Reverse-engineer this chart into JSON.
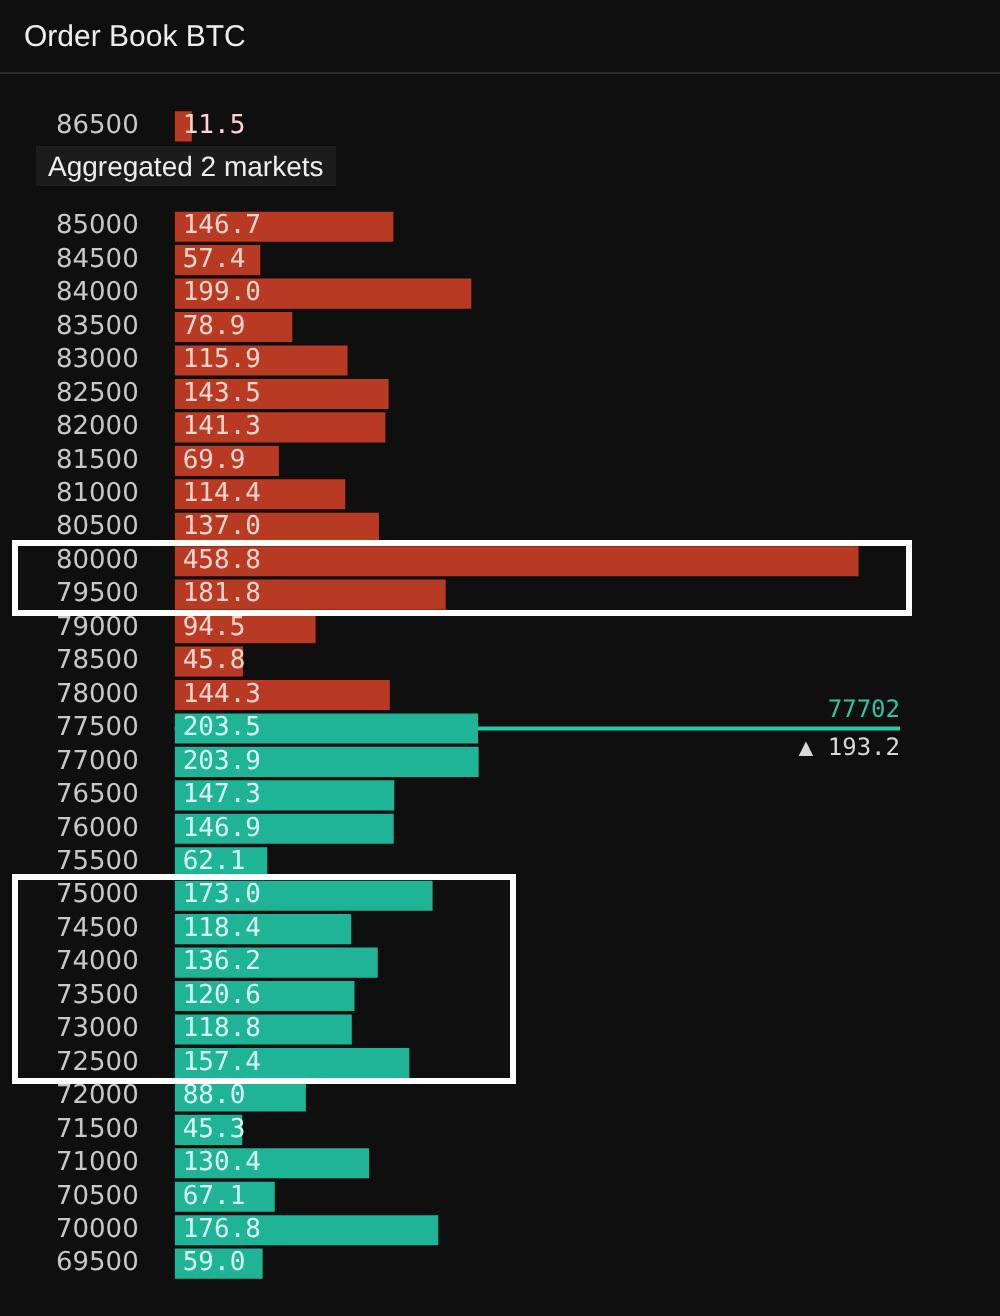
{
  "chart_data": {
    "type": "bar",
    "orientation": "horizontal",
    "stacked": true,
    "title": "Order Book BTC",
    "subtitle": "Aggregated 2 markets",
    "categories": [
      "86500",
      null,
      null,
      "85000",
      "84500",
      "84000",
      "83500",
      "83000",
      "82500",
      "82000",
      "81500",
      "81000",
      "80500",
      "80000",
      "79500",
      "79000",
      "78500",
      "78000",
      "77500",
      "77000",
      "76500",
      "76000",
      "75500",
      "75000",
      "74500",
      "74000",
      "73500",
      "73000",
      "72500",
      "72000",
      "71500",
      "71000",
      "70500",
      "70000",
      "69500"
    ],
    "series": [
      {
        "color": "#b83a22",
        "values": [
          11.5,
          null,
          null,
          146.7,
          57.4,
          199.0,
          78.9,
          115.9,
          143.5,
          141.3,
          69.9,
          114.4,
          137.0,
          458.8,
          181.8,
          94.5,
          45.8,
          144.3,
          null,
          null,
          null,
          null,
          null,
          null,
          null,
          null,
          null,
          null,
          null,
          null,
          null,
          null,
          null,
          null,
          null
        ],
        "value_labels": [
          "11.5",
          null,
          null,
          "146.7",
          "57.4",
          "199.0",
          "78.9",
          "115.9",
          "143.5",
          "141.3",
          "69.9",
          "114.4",
          "137.0",
          "458.8",
          "181.8",
          "94.5",
          "45.8",
          "144.3",
          null,
          null,
          null,
          null,
          null,
          null,
          null,
          null,
          null,
          null,
          null,
          null,
          null,
          null,
          null,
          null,
          null
        ]
      },
      {
        "color": "#1fb495",
        "values": [
          null,
          null,
          null,
          null,
          null,
          null,
          null,
          null,
          null,
          null,
          null,
          null,
          null,
          null,
          null,
          null,
          null,
          null,
          203.5,
          203.9,
          147.3,
          146.9,
          62.1,
          173.0,
          118.4,
          136.2,
          120.6,
          118.8,
          157.4,
          88.0,
          45.3,
          130.4,
          67.1,
          176.8,
          59.0
        ],
        "value_labels": [
          null,
          null,
          null,
          null,
          null,
          null,
          null,
          null,
          null,
          null,
          null,
          null,
          null,
          null,
          null,
          null,
          null,
          null,
          "203.5",
          "203.9",
          "147.3",
          "146.9",
          "62.1",
          "173.0",
          "118.4",
          "136.2",
          "120.6",
          "118.8",
          "157.4",
          "88.0",
          "45.3",
          "130.4",
          "67.1",
          "176.8",
          "59.0"
        ]
      }
    ],
    "ref_lines": [
      {
        "axis": "y",
        "value": "77500",
        "label": "77702",
        "color": "#2ec4a4"
      }
    ],
    "annotations": [
      "▲ 193.2"
    ],
    "grid": false,
    "legend": false
  }
}
